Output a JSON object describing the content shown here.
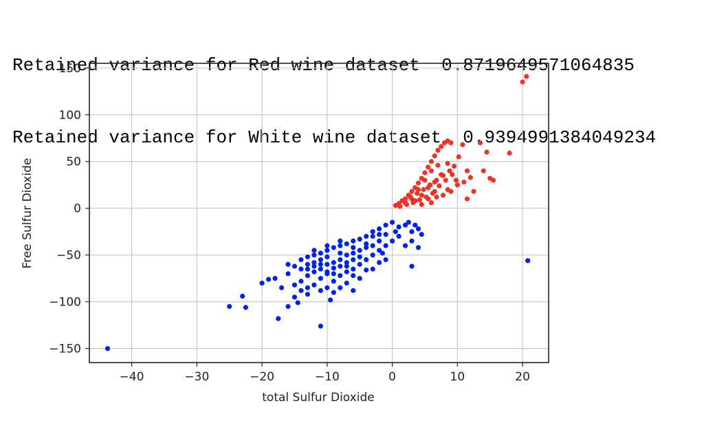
{
  "output": {
    "lines": [
      "Retained variance for Red wine dataset  0.8719649571064835",
      "Retained variance for White wine dataset  0.9394991384049234"
    ]
  },
  "chart_data": {
    "type": "scatter",
    "title": "",
    "xlabel": "total Sulfur Dioxide",
    "ylabel": "Free Sulfur Dioxide",
    "xlim": [
      -46.5,
      24.0
    ],
    "ylim": [
      -165,
      155
    ],
    "xticks": [
      -40,
      -30,
      -20,
      -10,
      0,
      10,
      20
    ],
    "yticks": [
      -150,
      -100,
      -50,
      0,
      50,
      100,
      150
    ],
    "xtick_labels": [
      "−40",
      "−30",
      "−20",
      "−10",
      "0",
      "10",
      "20"
    ],
    "ytick_labels": [
      "−150",
      "−100",
      "−50",
      "0",
      "50",
      "100",
      "150"
    ],
    "grid": true,
    "legend": "none",
    "series": [
      {
        "color": "#ee3224",
        "points": [
          [
            0.5,
            3
          ],
          [
            1.0,
            5
          ],
          [
            1.5,
            8
          ],
          [
            2.0,
            10
          ],
          [
            2.5,
            14
          ],
          [
            3.0,
            18
          ],
          [
            3.5,
            22
          ],
          [
            4.0,
            27
          ],
          [
            4.5,
            32
          ],
          [
            5.0,
            38
          ],
          [
            5.5,
            44
          ],
          [
            6.0,
            50
          ],
          [
            6.5,
            56
          ],
          [
            7.0,
            62
          ],
          [
            7.5,
            66
          ],
          [
            8.0,
            70
          ],
          [
            8.5,
            72
          ],
          [
            9.0,
            70
          ],
          [
            1.2,
            2
          ],
          [
            2.2,
            4
          ],
          [
            3.2,
            6
          ],
          [
            4.2,
            9
          ],
          [
            5.2,
            12
          ],
          [
            6.2,
            16
          ],
          [
            2.8,
            12
          ],
          [
            3.8,
            16
          ],
          [
            4.8,
            20
          ],
          [
            5.8,
            25
          ],
          [
            6.8,
            30
          ],
          [
            7.8,
            35
          ],
          [
            8.8,
            40
          ],
          [
            9.5,
            45
          ],
          [
            3.5,
            8
          ],
          [
            4.5,
            14
          ],
          [
            5.5,
            22
          ],
          [
            6.5,
            28
          ],
          [
            7.5,
            36
          ],
          [
            8.5,
            48
          ],
          [
            6.0,
            40
          ],
          [
            7.0,
            46
          ],
          [
            5.0,
            30
          ],
          [
            4.0,
            20
          ],
          [
            3.0,
            10
          ],
          [
            2.0,
            6
          ],
          [
            6.5,
            18
          ],
          [
            7.2,
            24
          ],
          [
            8.2,
            30
          ],
          [
            9.2,
            36
          ],
          [
            5.5,
            10
          ],
          [
            6.0,
            6
          ],
          [
            4.5,
            4
          ],
          [
            6.8,
            12
          ],
          [
            10.2,
            55
          ],
          [
            10.8,
            68
          ],
          [
            11.5,
            40
          ],
          [
            12.0,
            33
          ],
          [
            11.0,
            28
          ],
          [
            11.5,
            10
          ],
          [
            12.5,
            18
          ],
          [
            13.5,
            70
          ],
          [
            14.5,
            60
          ],
          [
            14.0,
            40
          ],
          [
            15.0,
            32
          ],
          [
            15.5,
            30
          ],
          [
            18.0,
            59
          ],
          [
            10.0,
            25
          ],
          [
            9.0,
            18
          ],
          [
            9.8,
            30
          ],
          [
            7.8,
            14
          ],
          [
            8.5,
            20
          ],
          [
            20.0,
            135
          ],
          [
            20.6,
            141
          ]
        ]
      },
      {
        "color": "#0022ee",
        "points": [
          [
            -2,
            -22
          ],
          [
            -1,
            -18
          ],
          [
            0,
            -15
          ],
          [
            1,
            -20
          ],
          [
            0.5,
            -25
          ],
          [
            -3,
            -25
          ],
          [
            -4,
            -30
          ],
          [
            -5,
            -33
          ],
          [
            -6,
            -35
          ],
          [
            -7,
            -38
          ],
          [
            -8,
            -40
          ],
          [
            -9,
            -42
          ],
          [
            -10,
            -45
          ],
          [
            -11,
            -48
          ],
          [
            -12,
            -50
          ],
          [
            -13,
            -52
          ],
          [
            -14,
            -55
          ],
          [
            -13,
            -60
          ],
          [
            -12,
            -62
          ],
          [
            -11,
            -65
          ],
          [
            -10,
            -68
          ],
          [
            -9,
            -70
          ],
          [
            -8,
            -72
          ],
          [
            -7,
            -68
          ],
          [
            -6,
            -65
          ],
          [
            -5,
            -60
          ],
          [
            -4,
            -55
          ],
          [
            -3,
            -50
          ],
          [
            -2,
            -45
          ],
          [
            -1,
            -40
          ],
          [
            0,
            -35
          ],
          [
            1,
            -30
          ],
          [
            -2,
            -35
          ],
          [
            -4,
            -42
          ],
          [
            -6,
            -48
          ],
          [
            -8,
            -55
          ],
          [
            -10,
            -60
          ],
          [
            -12,
            -68
          ],
          [
            -13,
            -72
          ],
          [
            -11,
            -75
          ],
          [
            -9,
            -78
          ],
          [
            -7,
            -80
          ],
          [
            -5,
            -75
          ],
          [
            -3,
            -65
          ],
          [
            -1,
            -55
          ],
          [
            -6,
            -55
          ],
          [
            -8,
            -62
          ],
          [
            -10,
            -52
          ],
          [
            -12,
            -58
          ],
          [
            -7,
            -50
          ],
          [
            -5,
            -45
          ],
          [
            -9,
            -58
          ],
          [
            -11,
            -55
          ],
          [
            -4,
            -38
          ],
          [
            -6,
            -42
          ],
          [
            -3,
            -40
          ],
          [
            -2,
            -28
          ],
          [
            -8,
            -48
          ],
          [
            -10,
            -70
          ],
          [
            -14,
            -78
          ],
          [
            -12,
            -82
          ],
          [
            -10,
            -85
          ],
          [
            -8,
            -85
          ],
          [
            -6,
            -88
          ],
          [
            -9,
            -90
          ],
          [
            -11,
            -88
          ],
          [
            -13,
            -85
          ],
          [
            -15,
            -82
          ],
          [
            -16,
            -70
          ],
          [
            -15,
            -62
          ],
          [
            -14,
            -65
          ],
          [
            -16,
            -60
          ],
          [
            2,
            -18
          ],
          [
            2.5,
            -15
          ],
          [
            3,
            -25
          ],
          [
            3.5,
            -18
          ],
          [
            4,
            -22
          ],
          [
            4.5,
            -28
          ],
          [
            3,
            -35
          ],
          [
            2,
            -40
          ],
          [
            4,
            -42
          ],
          [
            3,
            -62
          ],
          [
            -17,
            -85
          ],
          [
            -18,
            -75
          ],
          [
            -19,
            -76
          ],
          [
            -20,
            -80
          ],
          [
            -15,
            -95
          ],
          [
            -16,
            -105
          ],
          [
            -17.5,
            -118
          ],
          [
            -22.5,
            -106
          ],
          [
            -23,
            -94
          ],
          [
            -25,
            -105
          ],
          [
            -14.5,
            -101
          ],
          [
            -11,
            -126
          ],
          [
            -9.5,
            -98
          ],
          [
            -13,
            -92
          ],
          [
            -14,
            -88
          ],
          [
            -1,
            -28
          ],
          [
            -5,
            -52
          ],
          [
            -7,
            -58
          ],
          [
            -9,
            -64
          ],
          [
            -11,
            -60
          ],
          [
            -6,
            -72
          ],
          [
            -4,
            -66
          ],
          [
            -2,
            -58
          ],
          [
            -3,
            -30
          ],
          [
            -1.5,
            -48
          ],
          [
            -12,
            -45
          ],
          [
            -10,
            -40
          ],
          [
            -8,
            -35
          ],
          [
            -13,
            -65
          ],
          [
            -7,
            -62
          ],
          [
            -43.7,
            -150
          ],
          [
            20.8,
            -56
          ]
        ]
      }
    ]
  }
}
